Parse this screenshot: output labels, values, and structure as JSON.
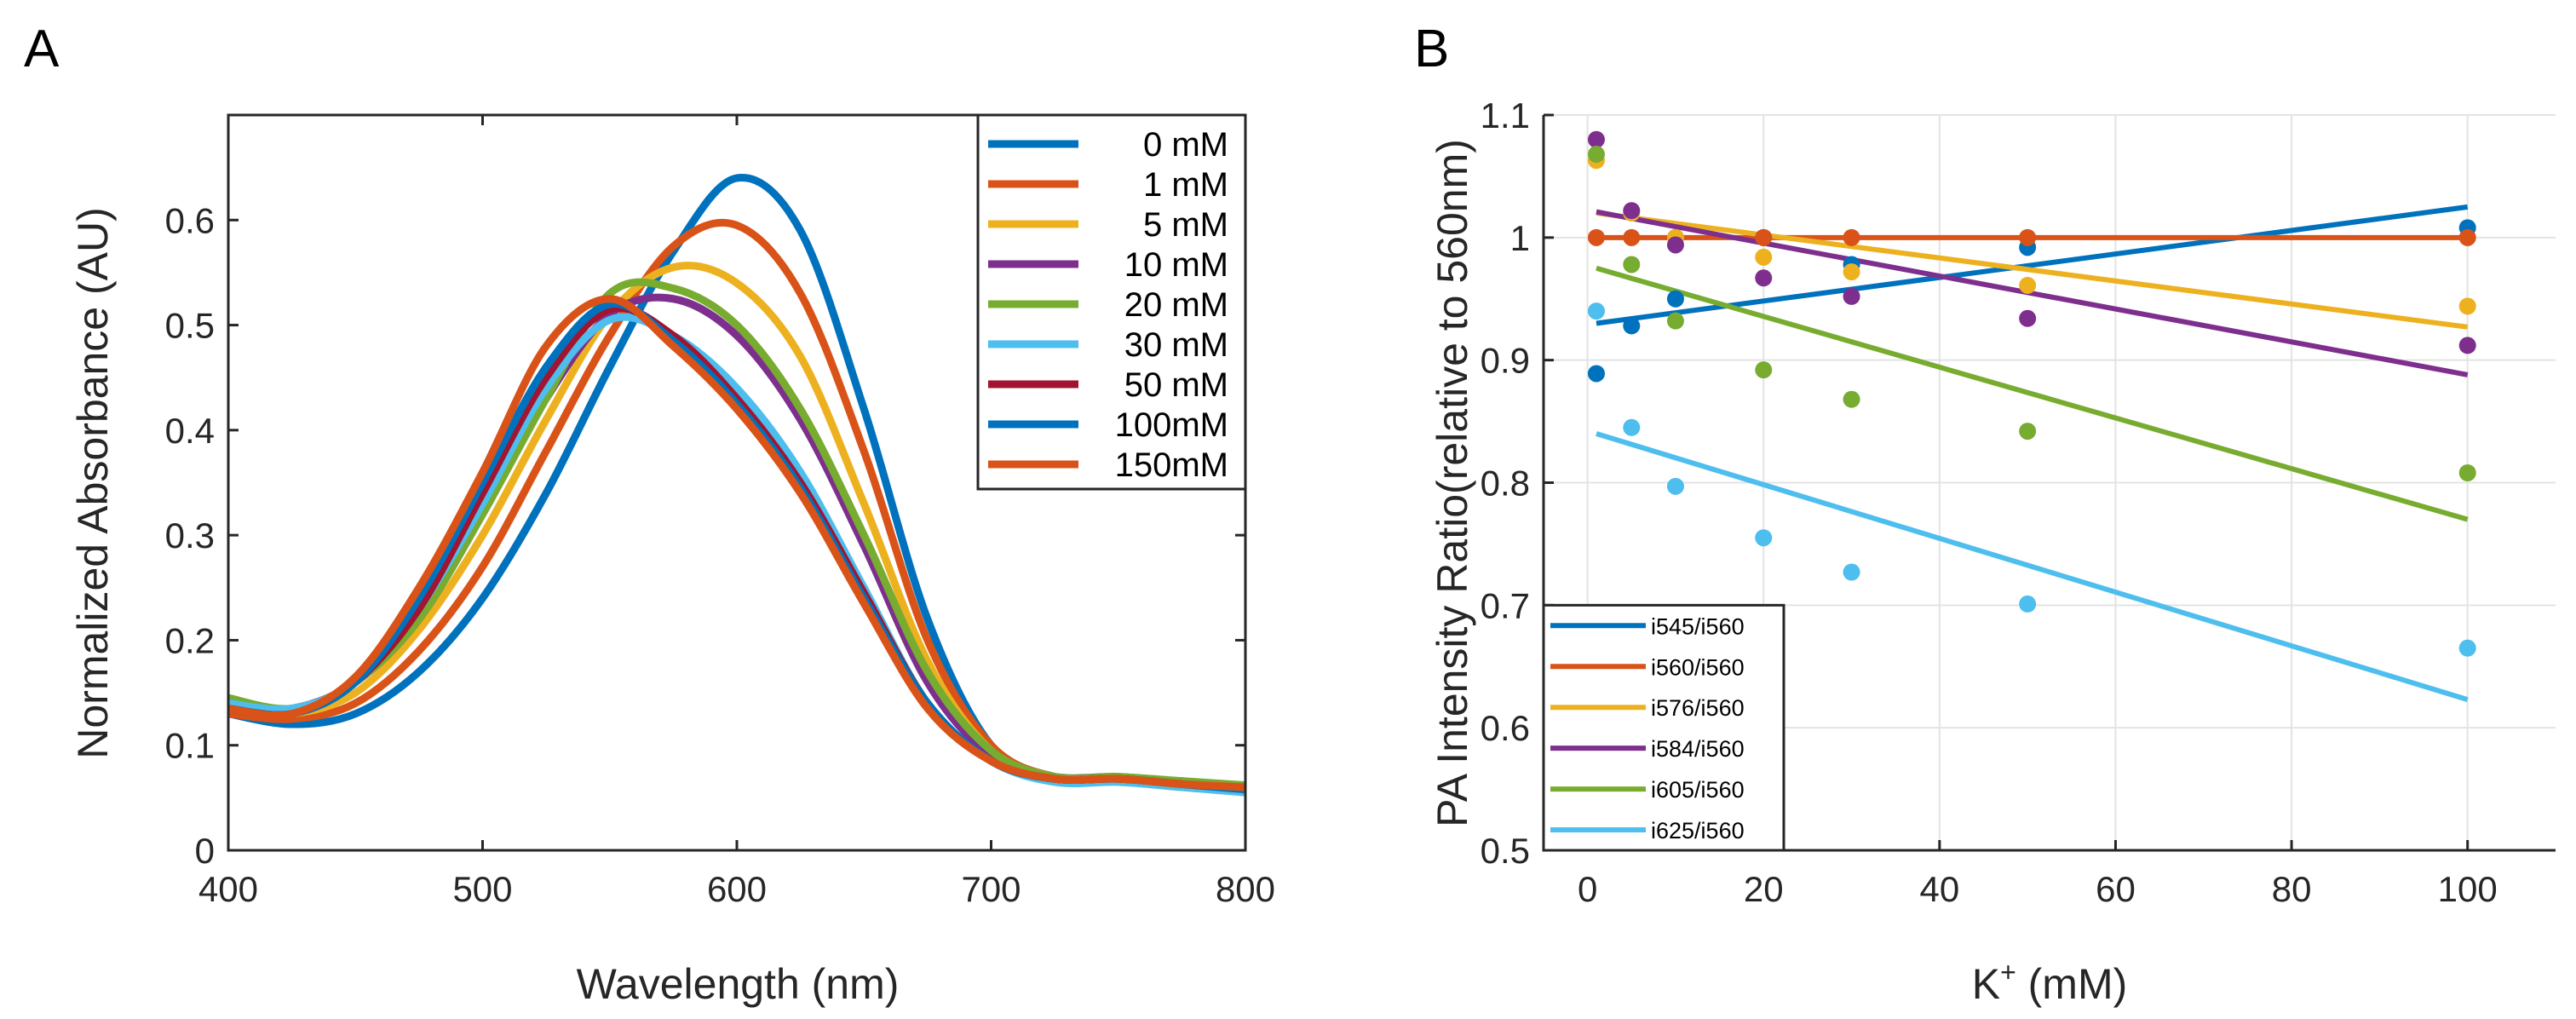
{
  "chart_data": [
    {
      "panel_label": "A",
      "type": "line",
      "xlabel": "Wavelength (nm)",
      "ylabel": "Normalized Absorbance (AU)",
      "xlim": [
        400,
        800
      ],
      "ylim": [
        0,
        0.7
      ],
      "xticks": [
        400,
        500,
        600,
        700,
        800
      ],
      "yticks": [
        0,
        0.1,
        0.2,
        0.3,
        0.4,
        0.5,
        0.6
      ],
      "grid": false,
      "legend_position": "top-right",
      "x": [
        400,
        425,
        450,
        475,
        500,
        525,
        550,
        575,
        600,
        625,
        650,
        675,
        700,
        725,
        750,
        775,
        800
      ],
      "series": [
        {
          "name": "0 mM",
          "color": "#0072BD",
          "values": [
            0.13,
            0.12,
            0.13,
            0.17,
            0.24,
            0.34,
            0.46,
            0.57,
            0.64,
            0.59,
            0.42,
            0.22,
            0.1,
            0.07,
            0.068,
            0.062,
            0.055
          ]
        },
        {
          "name": "1 mM",
          "color": "#D95319",
          "values": [
            0.13,
            0.125,
            0.14,
            0.19,
            0.27,
            0.38,
            0.49,
            0.575,
            0.595,
            0.53,
            0.38,
            0.2,
            0.1,
            0.07,
            0.068,
            0.063,
            0.06
          ]
        },
        {
          "name": "5 mM",
          "color": "#EDB120",
          "values": [
            0.135,
            0.13,
            0.15,
            0.21,
            0.3,
            0.41,
            0.51,
            0.555,
            0.54,
            0.47,
            0.33,
            0.18,
            0.095,
            0.07,
            0.068,
            0.064,
            0.06
          ]
        },
        {
          "name": "10 mM",
          "color": "#7E2F8E",
          "values": [
            0.14,
            0.135,
            0.16,
            0.22,
            0.32,
            0.43,
            0.51,
            0.525,
            0.49,
            0.41,
            0.29,
            0.16,
            0.09,
            0.07,
            0.07,
            0.065,
            0.06
          ]
        },
        {
          "name": "20 mM",
          "color": "#77AC30",
          "values": [
            0.145,
            0.135,
            0.16,
            0.22,
            0.32,
            0.43,
            0.53,
            0.535,
            0.5,
            0.42,
            0.3,
            0.17,
            0.095,
            0.07,
            0.07,
            0.066,
            0.062
          ]
        },
        {
          "name": "30 mM",
          "color": "#4DBEEE",
          "values": [
            0.14,
            0.135,
            0.16,
            0.23,
            0.33,
            0.44,
            0.505,
            0.49,
            0.44,
            0.36,
            0.25,
            0.14,
            0.085,
            0.065,
            0.065,
            0.06,
            0.055
          ]
        },
        {
          "name": "50 mM",
          "color": "#A2142F",
          "values": [
            0.135,
            0.13,
            0.16,
            0.23,
            0.34,
            0.45,
            0.515,
            0.49,
            0.43,
            0.35,
            0.245,
            0.14,
            0.085,
            0.068,
            0.068,
            0.063,
            0.058
          ]
        },
        {
          "name": "100mM",
          "color": "#0072BD",
          "values": [
            0.135,
            0.13,
            0.16,
            0.24,
            0.35,
            0.46,
            0.52,
            0.485,
            0.425,
            0.345,
            0.24,
            0.14,
            0.085,
            0.068,
            0.068,
            0.063,
            0.058
          ]
        },
        {
          "name": "150mM",
          "color": "#D95319",
          "values": [
            0.135,
            0.13,
            0.165,
            0.25,
            0.36,
            0.48,
            0.525,
            0.48,
            0.42,
            0.34,
            0.235,
            0.135,
            0.085,
            0.068,
            0.068,
            0.063,
            0.06
          ]
        }
      ]
    },
    {
      "panel_label": "B",
      "type": "scatter",
      "xlabel": "K",
      "xlabel_superscript": "+",
      "xlabel_unit": " (mM)",
      "ylabel": "PA Intensity Ratio(relative to 560nm)",
      "xlim": [
        -5,
        110
      ],
      "ylim": [
        0.5,
        1.1
      ],
      "xticks": [
        0,
        20,
        40,
        60,
        80,
        100
      ],
      "yticks": [
        0.5,
        0.6,
        0.7,
        0.8,
        0.9,
        1,
        1.1
      ],
      "grid": true,
      "legend_position": "bottom-left",
      "x": [
        1,
        5,
        10,
        20,
        30,
        50,
        100
      ],
      "series": [
        {
          "name": "i545/i560",
          "color": "#0072BD",
          "values": [
            0.889,
            0.928,
            0.95,
            1.0,
            0.978,
            0.992,
            1.008
          ],
          "fit": [
            0.93,
            1.025
          ]
        },
        {
          "name": "i560/i560",
          "color": "#D95319",
          "values": [
            1,
            1,
            1,
            1,
            1,
            1,
            1
          ],
          "fit": [
            1.0,
            1.0
          ]
        },
        {
          "name": "i576/i560",
          "color": "#EDB120",
          "values": [
            1.063,
            1.02,
            1.0,
            0.984,
            0.972,
            0.961,
            0.944
          ],
          "fit": [
            1.02,
            0.927
          ]
        },
        {
          "name": "i584/i560",
          "color": "#7E2F8E",
          "values": [
            1.08,
            1.022,
            0.994,
            0.967,
            0.952,
            0.934,
            0.912
          ],
          "fit": [
            1.021,
            0.888
          ]
        },
        {
          "name": "i605/i560",
          "color": "#77AC30",
          "values": [
            1.068,
            0.978,
            0.932,
            0.892,
            0.868,
            0.842,
            0.808
          ],
          "fit": [
            0.975,
            0.77
          ]
        },
        {
          "name": "i625/i560",
          "color": "#4DBEEE",
          "values": [
            0.94,
            0.845,
            0.797,
            0.755,
            0.727,
            0.701,
            0.665
          ],
          "fit": [
            0.84,
            0.623
          ]
        }
      ]
    }
  ]
}
